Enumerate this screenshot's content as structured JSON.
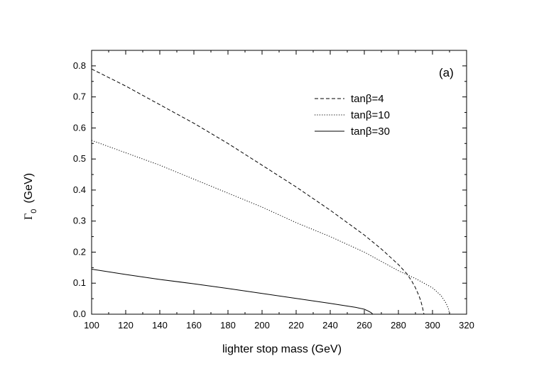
{
  "chart_data": {
    "type": "line",
    "title": "",
    "panel_label": "(a)",
    "xlabel": "lighter stop mass  (GeV)",
    "ylabel": {
      "symbol": "Γ",
      "subscript": "0",
      "unit": "(GeV)"
    },
    "xlim": [
      100,
      320
    ],
    "ylim": [
      0.0,
      0.85
    ],
    "xticks": [
      "100",
      "120",
      "140",
      "160",
      "180",
      "200",
      "220",
      "240",
      "260",
      "280",
      "300",
      "320"
    ],
    "yticks": [
      "0.0",
      "0.1",
      "0.2",
      "0.3",
      "0.4",
      "0.5",
      "0.6",
      "0.7",
      "0.8"
    ],
    "grid": false,
    "legend_position": "top-right",
    "series": [
      {
        "name": "tanβ=4",
        "style": "dashed",
        "x": [
          100,
          120,
          140,
          160,
          180,
          200,
          220,
          240,
          260,
          270,
          280,
          285,
          288,
          290,
          292,
          293,
          294,
          294.5,
          295
        ],
        "y": [
          0.79,
          0.735,
          0.675,
          0.615,
          0.55,
          0.48,
          0.41,
          0.335,
          0.255,
          0.21,
          0.16,
          0.13,
          0.105,
          0.085,
          0.06,
          0.045,
          0.025,
          0.012,
          0.0
        ]
      },
      {
        "name": "tanβ=10",
        "style": "dotted",
        "x": [
          100,
          120,
          140,
          160,
          180,
          200,
          220,
          240,
          260,
          280,
          290,
          300,
          305,
          308,
          309.5,
          310
        ],
        "y": [
          0.56,
          0.52,
          0.48,
          0.435,
          0.39,
          0.345,
          0.295,
          0.25,
          0.2,
          0.14,
          0.115,
          0.085,
          0.06,
          0.035,
          0.015,
          0.0
        ]
      },
      {
        "name": "tanβ=30",
        "style": "solid",
        "x": [
          100,
          120,
          140,
          160,
          180,
          200,
          220,
          240,
          255,
          260,
          262,
          264,
          265
        ],
        "y": [
          0.145,
          0.128,
          0.112,
          0.098,
          0.083,
          0.067,
          0.051,
          0.035,
          0.022,
          0.016,
          0.011,
          0.005,
          0.0
        ]
      }
    ]
  }
}
